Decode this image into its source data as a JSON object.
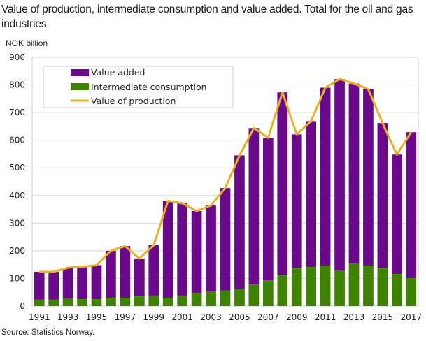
{
  "title": "Value of production, intermediate consumption and value added. Total for the oil and gas industries",
  "unit_label": "NOK billion",
  "source": "Source: Statistics Norway.",
  "colors": {
    "value_added": "#6a0a8a",
    "intermediate": "#3f8200",
    "production": "#e9b025",
    "grid": "#d9d9d9",
    "frame": "#d0d0d0"
  },
  "chart_data": {
    "type": "bar",
    "stacked": true,
    "title": "Value of production, intermediate consumption and value added. Total for the oil and gas industries",
    "xlabel": "",
    "ylabel": "NOK billion",
    "ylim": [
      0,
      900
    ],
    "yticks": [
      0,
      100,
      200,
      300,
      400,
      500,
      600,
      700,
      800,
      900
    ],
    "xtick_labels": [
      "1991",
      "1993",
      "1995",
      "1997",
      "1999",
      "2001",
      "2003",
      "2005",
      "2007",
      "2009",
      "2011",
      "2013",
      "2015",
      "2017"
    ],
    "grid": true,
    "legend_position": "top-left",
    "categories": [
      "1991",
      "1992",
      "1993",
      "1994",
      "1995",
      "1996",
      "1997",
      "1998",
      "1999",
      "2000",
      "2001",
      "2002",
      "2003",
      "2004",
      "2005",
      "2006",
      "2007",
      "2008",
      "2009",
      "2010",
      "2011",
      "2012",
      "2013",
      "2014",
      "2015",
      "2016",
      "2017"
    ],
    "series": [
      {
        "name": "Intermediate consumption",
        "type": "bar",
        "values": [
          23,
          23,
          28,
          25,
          25,
          30,
          30,
          35,
          38,
          30,
          38,
          48,
          53,
          56,
          63,
          78,
          93,
          111,
          136,
          141,
          146,
          128,
          154,
          146,
          136,
          116,
          101
        ]
      },
      {
        "name": "Value added",
        "type": "bar",
        "values": [
          101,
          101,
          111,
          117,
          123,
          170,
          187,
          137,
          182,
          351,
          334,
          296,
          311,
          371,
          482,
          566,
          516,
          662,
          485,
          528,
          644,
          693,
          651,
          639,
          526,
          432,
          528
        ]
      },
      {
        "name": "Value of production",
        "type": "line",
        "values": [
          124,
          124,
          139,
          142,
          148,
          200,
          217,
          172,
          220,
          381,
          372,
          344,
          364,
          427,
          545,
          644,
          609,
          773,
          621,
          669,
          790,
          821,
          805,
          785,
          662,
          548,
          629
        ]
      }
    ],
    "legend": [
      "Value added",
      "Intermediate consumption",
      "Value of production"
    ]
  }
}
